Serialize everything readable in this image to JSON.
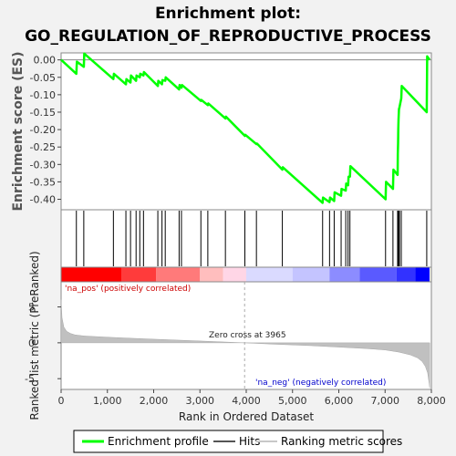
{
  "title_line1": "Enrichment plot:",
  "title_line2": "GO_REGULATION_OF_REPRODUCTIVE_PROCESS",
  "colors": {
    "enrichment": "#00ff00",
    "hits": "#000000",
    "metric": "#c0c0c0",
    "pos_label": "#cc0000",
    "neg_label": "#0000cc",
    "zero_line": "#aaaaaa"
  },
  "legend": [
    {
      "label": "Enrichment profile",
      "color": "#00ff00",
      "kind": "line"
    },
    {
      "label": "Hits",
      "color": "#555555",
      "kind": "line"
    },
    {
      "label": "Ranking metric scores",
      "color": "#c8c8c8",
      "kind": "line"
    }
  ],
  "annotations": {
    "pos": "'na_pos' (positively correlated)",
    "neg": "'na_neg' (negatively correlated)",
    "zero": "Zero cross at 3965"
  },
  "chart_data": [
    {
      "type": "line",
      "panel": "enrichment",
      "ylabel": "Enrichment score (ES)",
      "ylim": [
        -0.43,
        0.02
      ],
      "yticks": [
        0.0,
        -0.05,
        -0.1,
        -0.15,
        -0.2,
        -0.25,
        -0.3,
        -0.35,
        -0.4
      ],
      "ytick_labels": [
        "0.00",
        "-0.05",
        "-0.10",
        "-0.15",
        "-0.20",
        "-0.25",
        "-0.30",
        "-0.35",
        "-0.40"
      ],
      "xlim": [
        0,
        8000
      ],
      "series": [
        {
          "x": [
            0,
            330,
            340,
            490,
            500,
            1130,
            1140,
            1400,
            1410,
            1500,
            1510,
            1620,
            1630,
            1700,
            1710,
            1780,
            1790,
            2090,
            2100,
            2180,
            2190,
            2250,
            2260,
            2550,
            2560,
            2600,
            2610,
            3020,
            3030,
            3170,
            3180,
            3550,
            3560,
            3970,
            3980,
            4220,
            4230,
            4780,
            4790,
            5650,
            5660,
            5800,
            5810,
            5900,
            5910,
            6050,
            6060,
            6150,
            6160,
            6200,
            6210,
            6240,
            6250,
            7010,
            7020,
            7170,
            7180,
            7270,
            7275,
            7280,
            7285,
            7290,
            7300,
            7305,
            7350,
            7360,
            7900,
            7910,
            7960
          ],
          "y": [
            0.0,
            -0.04,
            -0.005,
            -0.02,
            0.018,
            -0.055,
            -0.04,
            -0.07,
            -0.055,
            -0.065,
            -0.045,
            -0.06,
            -0.045,
            -0.05,
            -0.04,
            -0.045,
            -0.035,
            -0.075,
            -0.06,
            -0.07,
            -0.058,
            -0.06,
            -0.05,
            -0.085,
            -0.072,
            -0.08,
            -0.072,
            -0.118,
            -0.115,
            -0.13,
            -0.125,
            -0.168,
            -0.163,
            -0.218,
            -0.215,
            -0.242,
            -0.24,
            -0.315,
            -0.308,
            -0.41,
            -0.395,
            -0.408,
            -0.395,
            -0.405,
            -0.38,
            -0.39,
            -0.37,
            -0.375,
            -0.355,
            -0.36,
            -0.335,
            -0.335,
            -0.305,
            -0.4,
            -0.35,
            -0.37,
            -0.315,
            -0.33,
            -0.27,
            -0.24,
            -0.2,
            -0.17,
            -0.14,
            -0.14,
            -0.11,
            -0.075,
            -0.15,
            0.01,
            0.0
          ]
        }
      ]
    },
    {
      "type": "hits",
      "panel": "hits",
      "xlim": [
        0,
        8000
      ],
      "x": [
        330,
        490,
        1130,
        1400,
        1500,
        1620,
        1700,
        1780,
        2090,
        2180,
        2250,
        2550,
        2600,
        3020,
        3170,
        3550,
        3970,
        4220,
        4780,
        5650,
        5800,
        5900,
        6050,
        6150,
        6200,
        6240,
        7010,
        7170,
        7270,
        7290,
        7310,
        7350,
        7900
      ]
    },
    {
      "type": "heatmap",
      "panel": "rank-color-bar",
      "xlim": [
        0,
        8000
      ],
      "segments": [
        {
          "x0": 0,
          "x1": 1300,
          "color": "#ff0000"
        },
        {
          "x0": 1300,
          "x1": 2050,
          "color": "#ff3b3b"
        },
        {
          "x0": 2050,
          "x1": 3000,
          "color": "#ff7a7a"
        },
        {
          "x0": 3000,
          "x1": 3500,
          "color": "#ffbebe"
        },
        {
          "x0": 3500,
          "x1": 4000,
          "color": "#ffd6e6"
        },
        {
          "x0": 4000,
          "x1": 5000,
          "color": "#dadaff"
        },
        {
          "x0": 5000,
          "x1": 5800,
          "color": "#c4c4ff"
        },
        {
          "x0": 5800,
          "x1": 6450,
          "color": "#8c8cff"
        },
        {
          "x0": 6450,
          "x1": 7250,
          "color": "#5a5aff"
        },
        {
          "x0": 7250,
          "x1": 7650,
          "color": "#3232ff"
        },
        {
          "x0": 7650,
          "x1": 7960,
          "color": "#0000ff"
        }
      ]
    },
    {
      "type": "area",
      "panel": "ranked-metric",
      "ylabel": "Ranked list metric (PreRanked)",
      "xlabel": "Rank in Ordered Dataset",
      "ylim": [
        -6.5,
        8.5
      ],
      "yticks": [
        5,
        0,
        -5
      ],
      "ytick_labels": [
        "5",
        "0",
        "-5"
      ],
      "xlim": [
        0,
        8000
      ],
      "xticks": [
        0,
        1000,
        2000,
        3000,
        4000,
        5000,
        6000,
        7000,
        8000
      ],
      "xtick_labels": [
        "0",
        "1,000",
        "2,000",
        "3,000",
        "4,000",
        "5,000",
        "6,000",
        "7,000",
        "8,000"
      ],
      "zero_cross": 3965,
      "x": [
        0,
        20,
        60,
        120,
        200,
        300,
        500,
        800,
        1200,
        1800,
        2500,
        3200,
        3965,
        4600,
        5400,
        6000,
        6600,
        7000,
        7300,
        7550,
        7700,
        7800,
        7870,
        7920,
        7950,
        7965
      ],
      "y": [
        6.0,
        3.5,
        2.2,
        1.6,
        1.3,
        1.1,
        0.95,
        0.85,
        0.72,
        0.55,
        0.38,
        0.2,
        0.0,
        -0.2,
        -0.4,
        -0.6,
        -0.8,
        -1.0,
        -1.3,
        -1.7,
        -2.1,
        -2.6,
        -3.3,
        -4.2,
        -5.6,
        -6.3
      ]
    }
  ]
}
